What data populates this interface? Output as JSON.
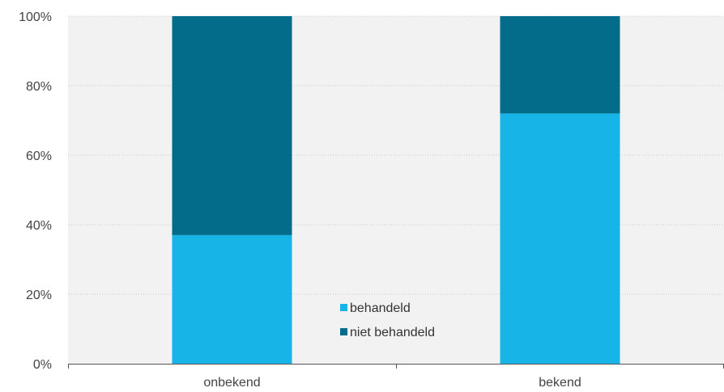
{
  "chart_data": {
    "type": "bar",
    "stacked": true,
    "categories": [
      "onbekend",
      "bekend"
    ],
    "series": [
      {
        "name": "behandeld",
        "values": [
          37,
          72
        ],
        "color": "#17b4e8"
      },
      {
        "name": "niet behandeld",
        "values": [
          63,
          28
        ],
        "color": "#036c8b"
      }
    ],
    "ylim": [
      0,
      100
    ],
    "yticks": [
      "0%",
      "20%",
      "40%",
      "60%",
      "80%",
      "100%"
    ],
    "ytick_values": [
      0,
      20,
      40,
      60,
      80,
      100
    ],
    "grid": true,
    "legend_position": "bottom-center",
    "title": "",
    "xlabel": "",
    "ylabel": "",
    "colors": {
      "plot_background": "#f2f2f2",
      "gridline": "#c8c8c8",
      "axis": "#555555"
    }
  }
}
